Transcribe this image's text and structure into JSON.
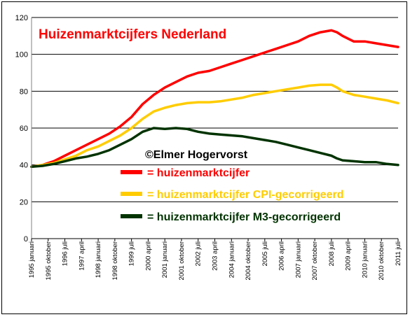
{
  "chart_data": {
    "type": "line",
    "title": "Huizenmarktcijfers Nederland",
    "annotation": "©Elmer Hogervorst",
    "ylim": [
      0,
      120
    ],
    "yticks": [
      0,
      20,
      40,
      60,
      80,
      100,
      120
    ],
    "grid": "horizontal",
    "legend_placement": "center",
    "x_start": 1995.0,
    "x_end": 2011.5,
    "xtick_labels": [
      {
        "t": 1995.0,
        "label": "1995 januari"
      },
      {
        "t": 1995.75,
        "label": "1995 oktober"
      },
      {
        "t": 1996.5,
        "label": "1996 juli"
      },
      {
        "t": 1997.25,
        "label": "1997 april"
      },
      {
        "t": 1998.0,
        "label": "1998 januari"
      },
      {
        "t": 1998.75,
        "label": "1998 oktober"
      },
      {
        "t": 1999.5,
        "label": "1999 juli"
      },
      {
        "t": 2000.25,
        "label": "2000 april"
      },
      {
        "t": 2001.0,
        "label": "2001 januari"
      },
      {
        "t": 2001.75,
        "label": "2001 oktober"
      },
      {
        "t": 2002.5,
        "label": "2002 juli"
      },
      {
        "t": 2003.25,
        "label": "2003 april"
      },
      {
        "t": 2004.0,
        "label": "2004 januari"
      },
      {
        "t": 2004.75,
        "label": "2004 oktober"
      },
      {
        "t": 2005.5,
        "label": "2005 juli"
      },
      {
        "t": 2006.25,
        "label": "2006 april"
      },
      {
        "t": 2007.0,
        "label": "2007 januari"
      },
      {
        "t": 2007.75,
        "label": "2007 oktober"
      },
      {
        "t": 2008.5,
        "label": "2008 juli"
      },
      {
        "t": 2009.25,
        "label": "2009 april"
      },
      {
        "t": 2010.0,
        "label": "2010 januari"
      },
      {
        "t": 2010.75,
        "label": "2010 oktober"
      },
      {
        "t": 2011.5,
        "label": "2011 juli"
      }
    ],
    "series": [
      {
        "name": "= huizenmarktcijfer",
        "color": "#ff0000",
        "x": [
          1995.0,
          1995.5,
          1996.0,
          1996.5,
          1997.0,
          1997.5,
          1998.0,
          1998.5,
          1999.0,
          1999.5,
          2000.0,
          2000.5,
          2001.0,
          2001.5,
          2002.0,
          2002.5,
          2003.0,
          2003.5,
          2004.0,
          2004.5,
          2005.0,
          2005.5,
          2006.0,
          2006.5,
          2007.0,
          2007.5,
          2008.0,
          2008.5,
          2008.75,
          2009.0,
          2009.5,
          2010.0,
          2010.5,
          2011.0,
          2011.5
        ],
        "y": [
          39,
          40,
          42,
          45,
          48,
          51,
          54,
          57,
          61,
          66,
          73,
          78,
          82,
          85,
          88,
          90,
          91,
          93,
          95,
          97,
          99,
          101,
          103,
          105,
          107,
          110,
          112,
          113,
          112,
          110,
          107,
          107,
          106,
          105,
          104
        ]
      },
      {
        "name": "= huizenmarktcijfer CPI-gecorrigeerd",
        "color": "#ffcc00",
        "x": [
          1995.0,
          1995.5,
          1996.0,
          1996.5,
          1997.0,
          1997.5,
          1998.0,
          1998.5,
          1999.0,
          1999.5,
          2000.0,
          2000.5,
          2001.0,
          2001.5,
          2002.0,
          2002.5,
          2003.0,
          2003.5,
          2004.0,
          2004.5,
          2005.0,
          2005.5,
          2006.0,
          2006.5,
          2007.0,
          2007.5,
          2008.0,
          2008.5,
          2008.75,
          2009.0,
          2009.5,
          2010.0,
          2010.5,
          2011.0,
          2011.5
        ],
        "y": [
          39,
          40,
          41,
          43,
          45,
          48,
          50,
          53,
          56,
          60,
          65,
          69,
          71,
          72.5,
          73.5,
          74,
          74,
          74.5,
          75.5,
          76.5,
          78,
          79,
          80,
          81,
          82,
          83,
          83.5,
          83.5,
          82,
          80,
          78,
          77,
          76,
          75,
          73.5
        ]
      },
      {
        "name": "= huizenmarktcijfer M3-gecorrigeerd",
        "color": "#003300",
        "x": [
          1995.0,
          1995.5,
          1996.0,
          1996.5,
          1997.0,
          1997.5,
          1998.0,
          1998.5,
          1999.0,
          1999.5,
          2000.0,
          2000.5,
          2001.0,
          2001.5,
          2002.0,
          2002.5,
          2003.0,
          2003.5,
          2004.0,
          2004.5,
          2005.0,
          2005.5,
          2006.0,
          2006.5,
          2007.0,
          2007.5,
          2008.0,
          2008.5,
          2008.75,
          2009.0,
          2009.5,
          2010.0,
          2010.5,
          2011.0,
          2011.5
        ],
        "y": [
          39,
          39.5,
          40.5,
          42,
          43.5,
          44.5,
          46,
          48,
          51,
          54,
          58,
          60,
          59.5,
          60,
          59.5,
          58,
          57,
          56.5,
          56,
          55.5,
          54.5,
          53.5,
          52.5,
          51,
          49.5,
          48,
          46.5,
          45,
          43.5,
          42.5,
          42,
          41.5,
          41.5,
          40.5,
          40
        ]
      }
    ]
  }
}
